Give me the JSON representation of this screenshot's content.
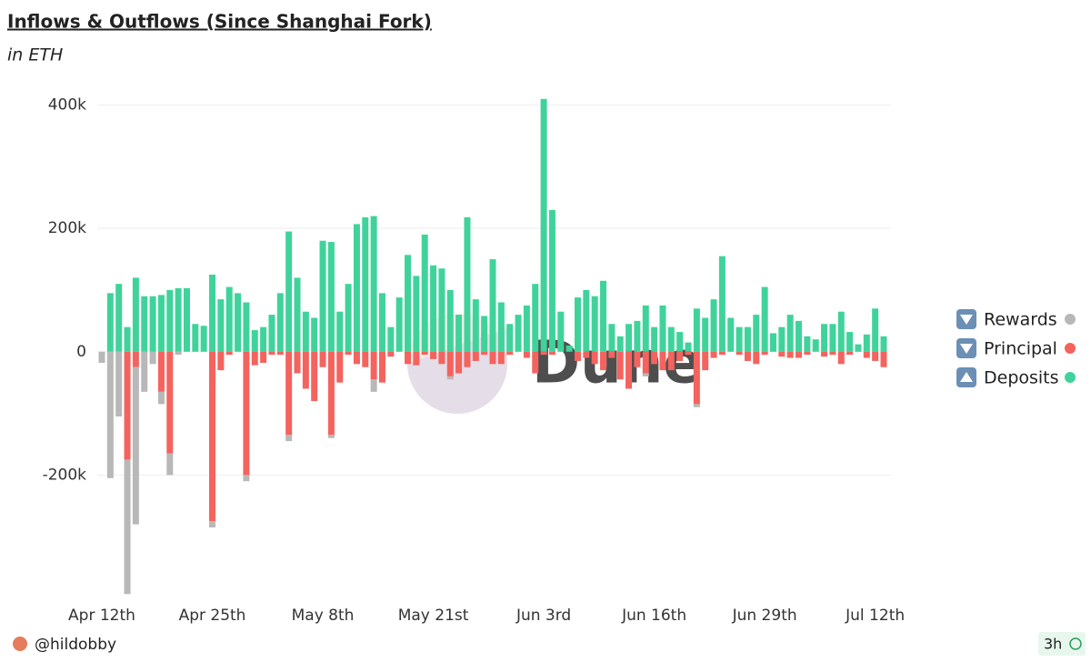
{
  "chart_data": {
    "type": "bar",
    "stacked": true,
    "title": "Inflows & Outflows (Since Shanghai Fork)",
    "subtitle": "in ETH",
    "watermark": "Dune",
    "author": "@hildobby",
    "age": "3h",
    "categories": [
      "Apr 12th",
      null,
      null,
      null,
      null,
      null,
      null,
      null,
      null,
      null,
      null,
      null,
      null,
      "Apr 25th",
      null,
      null,
      null,
      null,
      null,
      null,
      null,
      null,
      null,
      null,
      null,
      null,
      "May 8th",
      null,
      null,
      null,
      null,
      null,
      null,
      null,
      null,
      null,
      null,
      null,
      null,
      "May 21st",
      null,
      null,
      null,
      null,
      null,
      null,
      null,
      null,
      null,
      null,
      null,
      null,
      "Jun 3rd",
      null,
      null,
      null,
      null,
      null,
      null,
      null,
      null,
      null,
      null,
      null,
      null,
      "Jun 16th",
      null,
      null,
      null,
      null,
      null,
      null,
      null,
      null,
      null,
      null,
      null,
      null,
      "Jun 29th",
      null,
      null,
      null,
      null,
      null,
      null,
      null,
      null,
      null,
      null,
      null,
      null,
      "Jul 12th",
      null
    ],
    "series": [
      {
        "name": "Rewards",
        "color": "#b8b8b8",
        "values": [
          -18000,
          -205000,
          -105000,
          -218000,
          -255000,
          -65000,
          -20000,
          -20000,
          -35000,
          -5000,
          0,
          0,
          0,
          -10000,
          0,
          0,
          0,
          -10000,
          0,
          0,
          0,
          0,
          -10000,
          0,
          0,
          0,
          0,
          -5000,
          0,
          0,
          0,
          0,
          -20000,
          0,
          0,
          0,
          0,
          0,
          0,
          0,
          0,
          -5000,
          0,
          0,
          0,
          0,
          0,
          0,
          0,
          0,
          0,
          0,
          0,
          0,
          0,
          0,
          0,
          0,
          0,
          0,
          0,
          0,
          0,
          0,
          -5000,
          0,
          0,
          0,
          0,
          0,
          -5000,
          0,
          0,
          0,
          0,
          0,
          0,
          0,
          0,
          0,
          0,
          0,
          0,
          0,
          0,
          0,
          0,
          0,
          0,
          0,
          0,
          0,
          0
        ]
      },
      {
        "name": "Principal",
        "color": "#f4635e",
        "values": [
          0,
          0,
          0,
          -175000,
          -25000,
          0,
          0,
          -65000,
          -165000,
          0,
          0,
          0,
          0,
          -275000,
          -30000,
          -5000,
          0,
          -200000,
          -22000,
          -18000,
          -5000,
          -5000,
          -135000,
          -35000,
          -60000,
          -80000,
          -25000,
          -135000,
          -50000,
          -5000,
          -20000,
          -25000,
          -45000,
          -50000,
          -8000,
          0,
          -20000,
          -22000,
          -5000,
          -12000,
          -20000,
          -40000,
          -35000,
          -25000,
          -15000,
          -5000,
          -20000,
          -20000,
          -5000,
          0,
          -10000,
          -35000,
          -5000,
          -5000,
          0,
          0,
          -15000,
          -10000,
          -20000,
          -30000,
          -10000,
          -45000,
          -60000,
          -25000,
          -35000,
          -20000,
          -30000,
          -30000,
          -15000,
          -5000,
          -85000,
          -30000,
          -10000,
          -5000,
          0,
          -5000,
          -15000,
          -20000,
          -5000,
          0,
          -8000,
          -10000,
          -10000,
          -5000,
          0,
          -8000,
          -5000,
          -20000,
          -5000,
          0,
          -10000,
          -15000,
          -25000
        ]
      },
      {
        "name": "Deposits",
        "color": "#3fd39b",
        "values": [
          0,
          95000,
          110000,
          40000,
          120000,
          90000,
          90000,
          92000,
          100000,
          103000,
          103000,
          45000,
          42000,
          125000,
          85000,
          105000,
          95000,
          80000,
          35000,
          40000,
          60000,
          95000,
          195000,
          120000,
          65000,
          55000,
          180000,
          178000,
          65000,
          110000,
          207000,
          218000,
          220000,
          95000,
          40000,
          88000,
          157000,
          123000,
          190000,
          140000,
          135000,
          100000,
          60000,
          218000,
          85000,
          58000,
          150000,
          80000,
          45000,
          60000,
          75000,
          110000,
          410000,
          230000,
          65000,
          10000,
          88000,
          100000,
          90000,
          115000,
          45000,
          25000,
          45000,
          50000,
          75000,
          40000,
          75000,
          40000,
          32000,
          15000,
          70000,
          55000,
          85000,
          155000,
          55000,
          40000,
          40000,
          60000,
          105000,
          30000,
          40000,
          60000,
          50000,
          25000,
          20000,
          45000,
          45000,
          65000,
          32000,
          12000,
          28000,
          70000,
          25000
        ]
      }
    ],
    "ylim": [
      -400000,
      420000
    ],
    "yticks": [
      {
        "value": -200000,
        "label": "-200k"
      },
      0,
      {
        "value": 200000,
        "label": "200k"
      },
      {
        "value": 400000,
        "label": "400k"
      }
    ],
    "grid": true,
    "legend": "right"
  }
}
